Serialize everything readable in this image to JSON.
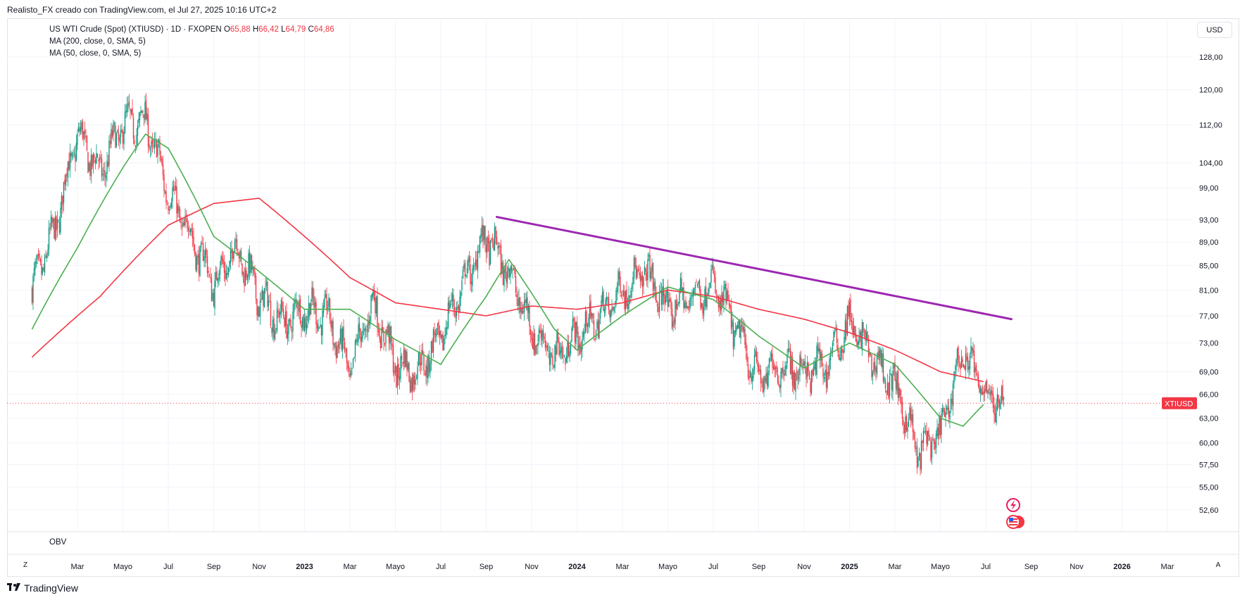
{
  "header": {
    "attribution": "Realisto_FX creado con TradingView.com, el Jul 27, 2025 10:16 UTC+2"
  },
  "legend": {
    "symbol_title": "US WTI Crude (Spot) (XTIUSD) · 1D · FXOPEN",
    "ohlc": [
      {
        "key": "O",
        "value": "65,88"
      },
      {
        "key": "H",
        "value": "66,42"
      },
      {
        "key": "L",
        "value": "64,79"
      },
      {
        "key": "C",
        "value": "64,86"
      }
    ],
    "ma200": "MA (200, close, 0, SMA, 5)",
    "ma50": "MA (50, close, 0, SMA, 5)"
  },
  "currency_button": "USD",
  "price_tag": "XTIUSD",
  "indicator_pane": "OBV",
  "axis_buttons": {
    "left": "Z",
    "right": "A"
  },
  "footer": {
    "brand": "TradingView"
  },
  "colors": {
    "up": "#089981",
    "down": "#f23645",
    "ma200": "#f23645",
    "ma50": "#4caf50",
    "trendline": "#9c27b0",
    "grid": "#f0f3fa"
  },
  "chart_data": {
    "type": "candlestick",
    "title": "US WTI Crude (Spot) (XTIUSD) · 1D · FXOPEN",
    "y_ticks": [
      "128,00",
      "120,00",
      "112,00",
      "104,00",
      "99,00",
      "93,00",
      "89,00",
      "85,00",
      "81,00",
      "77,00",
      "73,00",
      "69,00",
      "66,00",
      "63,00",
      "60,00",
      "57,50",
      "55,00",
      "52,60"
    ],
    "y_tick_values": [
      128,
      120,
      112,
      104,
      99,
      93,
      89,
      85,
      81,
      77,
      73,
      69,
      66,
      63,
      60,
      57.5,
      55,
      52.6
    ],
    "x_ticks": [
      {
        "label": "Mar",
        "bold": false
      },
      {
        "label": "Mayo",
        "bold": false
      },
      {
        "label": "Jul",
        "bold": false
      },
      {
        "label": "Sep",
        "bold": false
      },
      {
        "label": "Nov",
        "bold": false
      },
      {
        "label": "2023",
        "bold": true
      },
      {
        "label": "Mar",
        "bold": false
      },
      {
        "label": "Mayo",
        "bold": false
      },
      {
        "label": "Jul",
        "bold": false
      },
      {
        "label": "Sep",
        "bold": false
      },
      {
        "label": "Nov",
        "bold": false
      },
      {
        "label": "2024",
        "bold": true
      },
      {
        "label": "Mar",
        "bold": false
      },
      {
        "label": "Mayo",
        "bold": false
      },
      {
        "label": "Jul",
        "bold": false
      },
      {
        "label": "Sep",
        "bold": false
      },
      {
        "label": "Nov",
        "bold": false
      },
      {
        "label": "2025",
        "bold": true
      },
      {
        "label": "Mar",
        "bold": false
      },
      {
        "label": "Mayo",
        "bold": false
      },
      {
        "label": "Jul",
        "bold": false
      },
      {
        "label": "Sep",
        "bold": false
      },
      {
        "label": "Nov",
        "bold": false
      },
      {
        "label": "2026",
        "bold": true
      },
      {
        "label": "Mar",
        "bold": false
      }
    ],
    "x_tick_dates": [
      "2022-03",
      "2022-05",
      "2022-07",
      "2022-09",
      "2022-11",
      "2023-01",
      "2023-03",
      "2023-05",
      "2023-07",
      "2023-09",
      "2023-11",
      "2024-01",
      "2024-03",
      "2024-05",
      "2024-07",
      "2024-09",
      "2024-11",
      "2025-01",
      "2025-03",
      "2025-05",
      "2025-07",
      "2025-09",
      "2025-11",
      "2026-01",
      "2026-03"
    ],
    "last_price": 64.86,
    "close_path": [
      [
        "2022-01",
        81
      ],
      [
        "2022-02",
        91
      ],
      [
        "2022-03",
        110
      ],
      [
        "2022-04",
        102
      ],
      [
        "2022-05",
        112
      ],
      [
        "2022-06",
        113
      ],
      [
        "2022-07",
        98
      ],
      [
        "2022-08",
        90
      ],
      [
        "2022-09",
        82
      ],
      [
        "2022-10",
        88
      ],
      [
        "2022-11",
        80
      ],
      [
        "2022-12",
        76
      ],
      [
        "2023-01",
        78
      ],
      [
        "2023-02",
        77
      ],
      [
        "2023-03",
        69
      ],
      [
        "2023-04",
        79
      ],
      [
        "2023-05",
        70
      ],
      [
        "2023-06",
        69
      ],
      [
        "2023-07",
        74
      ],
      [
        "2023-08",
        82
      ],
      [
        "2023-09",
        90
      ],
      [
        "2023-10",
        84
      ],
      [
        "2023-11",
        75
      ],
      [
        "2023-12",
        71
      ],
      [
        "2024-01",
        74
      ],
      [
        "2024-02",
        77
      ],
      [
        "2024-03",
        81
      ],
      [
        "2024-04",
        84
      ],
      [
        "2024-05",
        78
      ],
      [
        "2024-06",
        80
      ],
      [
        "2024-07",
        82
      ],
      [
        "2024-08",
        75
      ],
      [
        "2024-09",
        68
      ],
      [
        "2024-10",
        70
      ],
      [
        "2024-11",
        69
      ],
      [
        "2024-12",
        70
      ],
      [
        "2025-01",
        76
      ],
      [
        "2025-02",
        71
      ],
      [
        "2025-03",
        67
      ],
      [
        "2025-04",
        59
      ],
      [
        "2025-05",
        61
      ],
      [
        "2025-06",
        72
      ],
      [
        "2025-07",
        66
      ],
      [
        "2025-07-25",
        64.86
      ]
    ],
    "ma200_path": [
      [
        "2022-01",
        71
      ],
      [
        "2022-04",
        80
      ],
      [
        "2022-07",
        92
      ],
      [
        "2022-09",
        96
      ],
      [
        "2022-11",
        97
      ],
      [
        "2023-01",
        90
      ],
      [
        "2023-03",
        83
      ],
      [
        "2023-05",
        79
      ],
      [
        "2023-07",
        78
      ],
      [
        "2023-09",
        77
      ],
      [
        "2023-11",
        78.5
      ],
      [
        "2024-01",
        78
      ],
      [
        "2024-03",
        79
      ],
      [
        "2024-05",
        81
      ],
      [
        "2024-07",
        80
      ],
      [
        "2024-09",
        78
      ],
      [
        "2024-11",
        76.5
      ],
      [
        "2025-01",
        74.5
      ],
      [
        "2025-03",
        72
      ],
      [
        "2025-05",
        69
      ],
      [
        "2025-07",
        67.6
      ]
    ],
    "ma50_path": [
      [
        "2022-01",
        75
      ],
      [
        "2022-03",
        88
      ],
      [
        "2022-05",
        103
      ],
      [
        "2022-06",
        110
      ],
      [
        "2022-07",
        107
      ],
      [
        "2022-09",
        90
      ],
      [
        "2022-11",
        84
      ],
      [
        "2023-01",
        78
      ],
      [
        "2023-03",
        78
      ],
      [
        "2023-05",
        73.5
      ],
      [
        "2023-07",
        70
      ],
      [
        "2023-09",
        80
      ],
      [
        "2023-10",
        86
      ],
      [
        "2023-12",
        75
      ],
      [
        "2024-01",
        72
      ],
      [
        "2024-03",
        77
      ],
      [
        "2024-05",
        81.5
      ],
      [
        "2024-07",
        79.5
      ],
      [
        "2024-09",
        74
      ],
      [
        "2024-11",
        69.5
      ],
      [
        "2025-01",
        73
      ],
      [
        "2025-03",
        70
      ],
      [
        "2025-05",
        63
      ],
      [
        "2025-06",
        62
      ],
      [
        "2025-07",
        65
      ]
    ],
    "trendline": {
      "start": [
        "2023-09-15",
        93.5
      ],
      "end": [
        "2025-08-05",
        76.5
      ]
    },
    "grid": true
  }
}
